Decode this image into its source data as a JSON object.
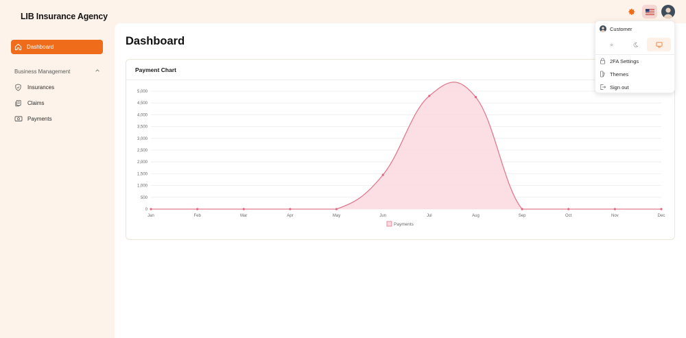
{
  "app": {
    "brand": "LIB Insurance Agency"
  },
  "header": {
    "icons": [
      "settings-icon",
      "us-flag-icon",
      "user-avatar"
    ]
  },
  "sidebar": {
    "active_item": {
      "label": "Dashboard",
      "icon": "home-icon"
    },
    "section_label": "Business Management",
    "items": [
      {
        "label": "Insurances",
        "icon": "shield-icon"
      },
      {
        "label": "Claims",
        "icon": "documents-icon"
      },
      {
        "label": "Payments",
        "icon": "money-icon"
      }
    ]
  },
  "main": {
    "title": "Dashboard",
    "card_title": "Payment Chart"
  },
  "user_menu": {
    "user_name": "Customer",
    "theme_options": [
      "light-theme-icon",
      "dark-theme-icon",
      "system-theme-icon"
    ],
    "active_theme": "system",
    "items": [
      {
        "label": "2FA Settings",
        "icon": "lock-icon"
      },
      {
        "label": "Themes",
        "icon": "themes-icon"
      },
      {
        "label": "Sign out",
        "icon": "sign-out-icon"
      }
    ]
  },
  "colors": {
    "accent": "#ef6c1a",
    "series_line": "#e07a8e",
    "series_fill": "#fbd9e0"
  },
  "chart_data": {
    "type": "area",
    "categories": [
      "Jan",
      "Feb",
      "Mar",
      "Apr",
      "May",
      "Jun",
      "Jul",
      "Aug",
      "Sep",
      "Oct",
      "Nov",
      "Dec"
    ],
    "series": [
      {
        "name": "Payments",
        "values": [
          0,
          0,
          0,
          0,
          0,
          1450,
          4800,
          4750,
          0,
          0,
          0,
          0
        ]
      }
    ],
    "yticks": [
      "0",
      "500",
      "1,000",
      "1,500",
      "2,000",
      "2,500",
      "3,000",
      "3,500",
      "4,000",
      "4,500",
      "5,000"
    ],
    "ylim": [
      0,
      5000
    ],
    "grid": true,
    "legend": "bottom"
  }
}
